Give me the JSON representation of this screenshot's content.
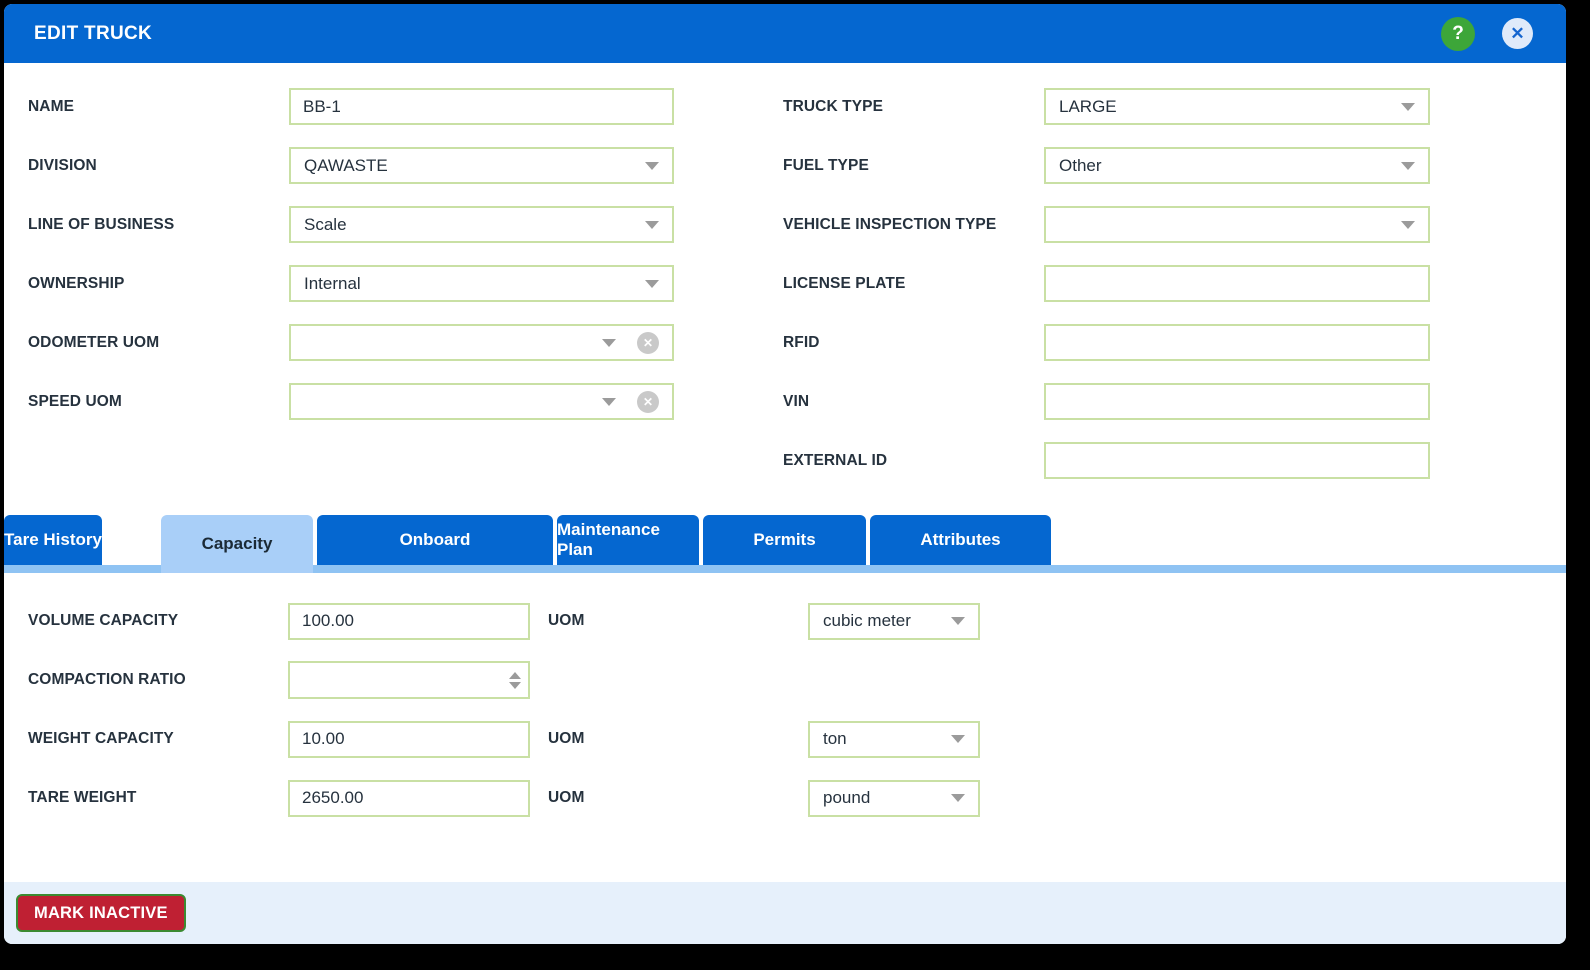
{
  "header": {
    "title": "EDIT TRUCK",
    "help_icon": "question-mark-circle",
    "close_icon": "close-x-circle",
    "help_glyph": "?",
    "close_glyph": "✕"
  },
  "form": {
    "left_fields": [
      {
        "label": "NAME",
        "type": "text",
        "value": "BB-1"
      },
      {
        "label": "DIVISION",
        "type": "select",
        "value": "QAWASTE"
      },
      {
        "label": "LINE OF BUSINESS",
        "type": "select",
        "value": "Scale"
      },
      {
        "label": "OWNERSHIP",
        "type": "select",
        "value": "Internal"
      },
      {
        "label": "ODOMETER UOM",
        "type": "select-clearable",
        "value": "",
        "clear_icon": "clear-circle-x",
        "clear_glyph": "✕"
      },
      {
        "label": "SPEED UOM",
        "type": "select-clearable",
        "value": "",
        "clear_icon": "clear-circle-x",
        "clear_glyph": "✕"
      }
    ],
    "right_fields": [
      {
        "label": "TRUCK TYPE",
        "type": "select",
        "value": "LARGE"
      },
      {
        "label": "FUEL TYPE",
        "type": "select",
        "value": "Other"
      },
      {
        "label": "VEHICLE INSPECTION TYPE",
        "type": "select",
        "value": ""
      },
      {
        "label": "LICENSE PLATE",
        "type": "text",
        "value": ""
      },
      {
        "label": "RFID",
        "type": "text",
        "value": ""
      },
      {
        "label": "VIN",
        "type": "text",
        "value": ""
      },
      {
        "label": "EXTERNAL ID",
        "type": "text",
        "value": ""
      }
    ]
  },
  "tabs": [
    {
      "label": "Capacity",
      "active": true
    },
    {
      "label": "Onboard",
      "active": false
    },
    {
      "label": "Maintenance Plan",
      "active": false
    },
    {
      "label": "Permits",
      "active": false
    },
    {
      "label": "Attributes",
      "active": false
    },
    {
      "label": "Tare History",
      "active": false
    }
  ],
  "capacity": {
    "rows": [
      {
        "label": "VOLUME CAPACITY",
        "value": "100.00",
        "uom_label": "UOM",
        "uom": "cubic meter"
      },
      {
        "label": "COMPACTION RATIO",
        "value": "",
        "spinner": true
      },
      {
        "label": "WEIGHT CAPACITY",
        "value": "10.00",
        "uom_label": "UOM",
        "uom": "ton"
      },
      {
        "label": "TARE WEIGHT",
        "value": "2650.00",
        "uom_label": "UOM",
        "uom": "pound"
      }
    ]
  },
  "footer": {
    "mark_inactive_label": "MARK INACTIVE"
  },
  "colors": {
    "header_blue": "#0567d0",
    "tab_blue": "#0567d0",
    "tab_active_light_blue": "#a9cff8",
    "tab_strip_blue": "#8fc3f3",
    "field_border_green": "#c9e0a4",
    "label_text": "#26323e",
    "footer_bg": "#e6f0fb",
    "danger_red": "#bf2033",
    "danger_border_green": "#3c8a31",
    "help_green": "#3da639"
  }
}
